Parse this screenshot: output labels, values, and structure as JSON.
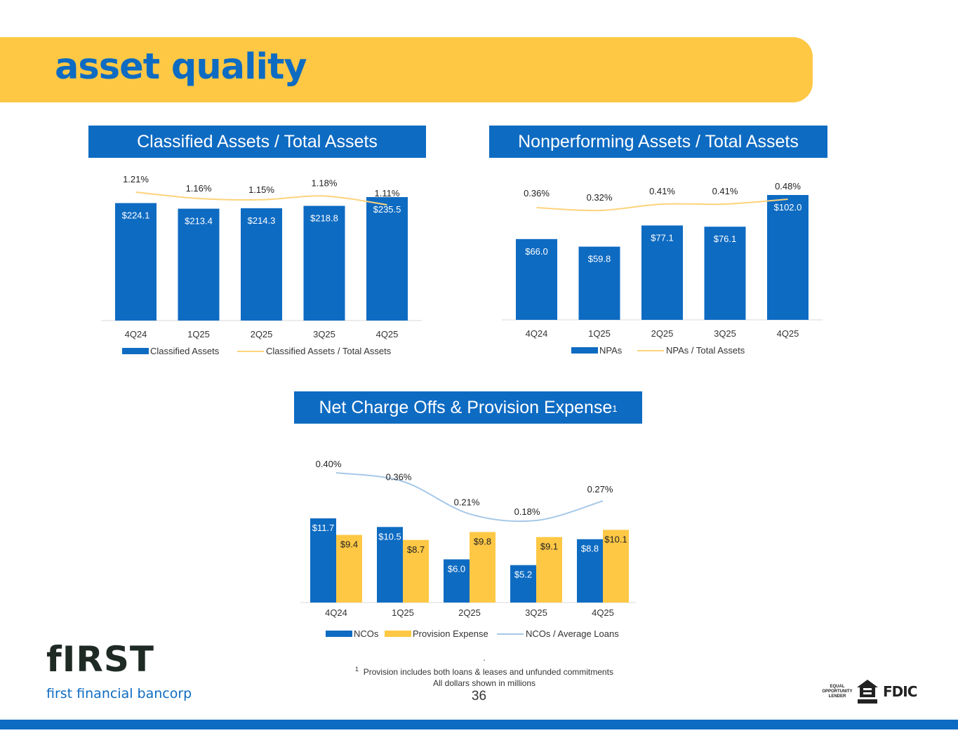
{
  "page": {
    "title": "asset quality",
    "page_number": "36"
  },
  "colors": {
    "blue": "#0E6BC2",
    "gold": "#FEC845",
    "line_gold": "#FDD37C",
    "line_blue": "#A6C8E8"
  },
  "charts": {
    "classified": {
      "header": "Classified Assets / Total Assets"
    },
    "nonperforming": {
      "header": "Nonperforming Assets / Total Assets"
    },
    "nco": {
      "header": "Net Charge Offs & Provision Expense",
      "header_sup": "1"
    }
  },
  "chart_data": [
    {
      "id": "classified",
      "type": "bar+line",
      "title": "Classified Assets / Total Assets",
      "categories": [
        "4Q24",
        "1Q25",
        "2Q25",
        "3Q25",
        "4Q25"
      ],
      "series": [
        {
          "name": "Classified Assets",
          "kind": "bar",
          "values": [
            224.1,
            213.4,
            214.3,
            218.8,
            235.5
          ],
          "labels": [
            "$224.1",
            "$213.4",
            "$214.3",
            "$218.8",
            "$235.5"
          ]
        },
        {
          "name": "Classified Assets / Total Assets",
          "kind": "line",
          "values": [
            1.21,
            1.16,
            1.15,
            1.18,
            1.11
          ],
          "labels": [
            "1.21%",
            "1.16%",
            "1.15%",
            "1.18%",
            "1.11%"
          ]
        }
      ],
      "legend": [
        "Classified Assets",
        "Classified Assets / Total Assets"
      ]
    },
    {
      "id": "nonperforming",
      "type": "bar+line",
      "title": "Nonperforming Assets / Total Assets",
      "categories": [
        "4Q24",
        "1Q25",
        "2Q25",
        "3Q25",
        "4Q25"
      ],
      "series": [
        {
          "name": "NPAs",
          "kind": "bar",
          "values": [
            66.0,
            59.8,
            77.1,
            76.1,
            102.0
          ],
          "labels": [
            "$66.0",
            "$59.8",
            "$77.1",
            "$76.1",
            "$102.0"
          ]
        },
        {
          "name": "NPAs / Total Assets",
          "kind": "line",
          "values": [
            0.36,
            0.32,
            0.41,
            0.41,
            0.48
          ],
          "labels": [
            "0.36%",
            "0.32%",
            "0.41%",
            "0.41%",
            "0.48%"
          ]
        }
      ],
      "legend": [
        "NPAs",
        "NPAs / Total Assets"
      ]
    },
    {
      "id": "nco",
      "type": "grouped-bar+line",
      "title": "Net Charge Offs & Provision Expense",
      "categories": [
        "4Q24",
        "1Q25",
        "2Q25",
        "3Q25",
        "4Q25"
      ],
      "series": [
        {
          "name": "NCOs",
          "kind": "bar",
          "values": [
            11.7,
            10.5,
            6.0,
            5.2,
            8.8
          ],
          "labels": [
            "$11.7",
            "$10.5",
            "$6.0",
            "$5.2",
            "$8.8"
          ]
        },
        {
          "name": "Provision Expense",
          "kind": "bar",
          "values": [
            9.4,
            8.7,
            9.8,
            9.1,
            10.1
          ],
          "labels": [
            "$9.4",
            "$8.7",
            "$9.8",
            "$9.1",
            "$10.1"
          ]
        },
        {
          "name": "NCOs / Average Loans",
          "kind": "line",
          "values": [
            0.4,
            0.36,
            0.21,
            0.18,
            0.27
          ],
          "labels": [
            "0.40%",
            "0.36%",
            "0.21%",
            "0.18%",
            "0.27%"
          ]
        }
      ],
      "legend": [
        "NCOs",
        "Provision Expense",
        "NCOs / Average Loans"
      ]
    }
  ],
  "logo": {
    "mark": "fIRST",
    "name": "first financial bancorp"
  },
  "footnote": {
    "dot": ".",
    "number": "1",
    "line1": "Provision includes both loans & leases and unfunded commitments",
    "line2": "All dollars shown in millions"
  },
  "badges": {
    "equal_line1": "EQUAL",
    "equal_line2": "OPPORTUNITY",
    "equal_line3": "LENDER",
    "fdic": "FDIC"
  }
}
